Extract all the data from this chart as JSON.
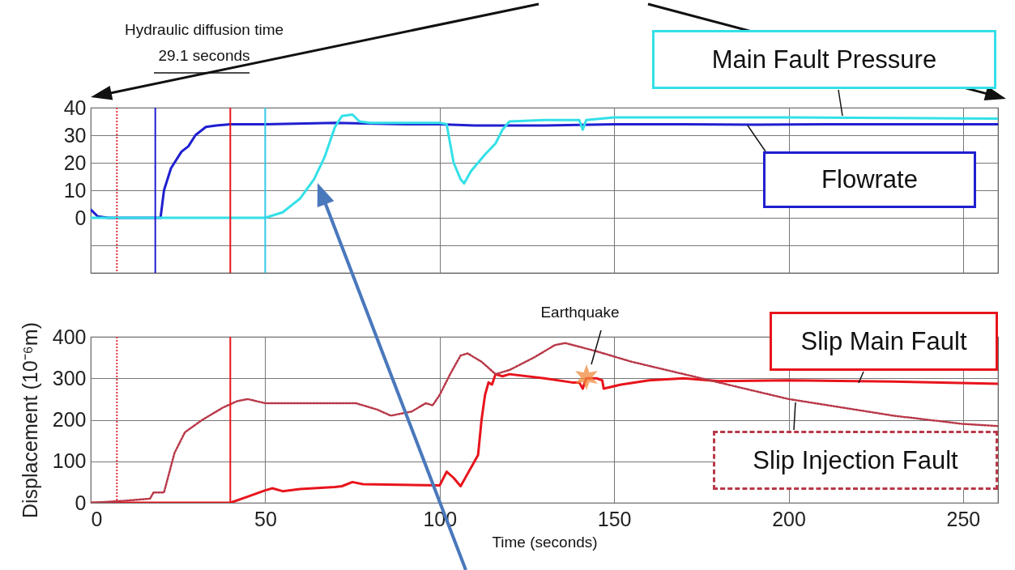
{
  "chart_data": [
    {
      "type": "line",
      "xlim": [
        0,
        260
      ],
      "xticks": [
        0,
        50,
        100,
        150,
        200,
        250
      ],
      "ylim": [
        -20,
        40
      ],
      "yticks": [
        {
          "value": -10,
          "label": null
        },
        0,
        10,
        20,
        30,
        40
      ],
      "grid": true,
      "tick_labels": "y",
      "series": [
        {
          "name": "Flowrate",
          "color": "#1f1fd0",
          "x": [
            0,
            2,
            5,
            15,
            19,
            20,
            21,
            23,
            26,
            28,
            30,
            33,
            36,
            40,
            50,
            70,
            90,
            100,
            110,
            130,
            150,
            170,
            190,
            210,
            230,
            260
          ],
          "values": [
            3,
            0.5,
            0,
            0,
            0,
            0,
            10,
            18,
            24,
            26,
            30,
            33,
            33.5,
            34,
            34,
            34.5,
            34,
            34,
            33.5,
            33.5,
            34,
            34,
            33.8,
            34,
            34,
            34
          ]
        },
        {
          "name": "Main Fault Pressure",
          "color": "#33e0e8",
          "x": [
            0,
            50,
            55,
            60,
            64,
            67,
            70,
            72,
            75,
            77,
            80,
            100,
            102,
            104,
            106,
            107,
            109,
            113,
            116,
            118,
            120,
            130,
            140,
            141,
            142,
            150,
            200,
            260
          ],
          "values": [
            0,
            0,
            2,
            7,
            14,
            22,
            33,
            37,
            37.5,
            35,
            34.5,
            34.5,
            34,
            20,
            14,
            12.5,
            17,
            23,
            27,
            32,
            35,
            35.5,
            35.5,
            32,
            35.5,
            36.5,
            36.5,
            36
          ]
        }
      ],
      "ref_lines": [
        {
          "axis": "x",
          "value": 7.5,
          "color": "#e0303c",
          "line_style": "dotted"
        },
        {
          "axis": "x",
          "value": 18.5,
          "color": "#1f1fd0",
          "line_style": "solid"
        },
        {
          "axis": "x",
          "value": 40,
          "color": "#e8141c",
          "line_style": "solid"
        },
        {
          "axis": "x",
          "value": 50,
          "color": "#33c8e8",
          "line_style": "solid"
        }
      ],
      "annotations": [
        "Hydraulic diffusion time\n29.1 seconds"
      ]
    },
    {
      "type": "line",
      "xlabel": "Time (seconds)",
      "ylabel": "Displacement (10⁻⁶m)",
      "xlim": [
        0,
        260
      ],
      "xticks": [
        0,
        50,
        100,
        150,
        200,
        250
      ],
      "ylim": [
        0,
        400
      ],
      "yticks": [
        0,
        100,
        200,
        300,
        400
      ],
      "grid": true,
      "series": [
        {
          "name": "Slip Main Fault",
          "color": "#e8141c",
          "line_style": "solid",
          "x": [
            0,
            40,
            45,
            50,
            52,
            55,
            60,
            70,
            72,
            75,
            78,
            100,
            102,
            104,
            106,
            108,
            110,
            111,
            112,
            113,
            114,
            115,
            116,
            118,
            120,
            130,
            138,
            140,
            141,
            142,
            145,
            146.6,
            147,
            152,
            160,
            170,
            180,
            200,
            230,
            260
          ],
          "values": [
            0,
            0,
            15,
            30,
            35,
            28,
            33,
            38,
            40,
            50,
            45,
            42,
            75,
            60,
            40,
            70,
            100,
            115,
            200,
            260,
            290,
            285,
            310,
            305,
            310,
            300,
            290,
            290,
            275,
            300,
            300,
            295,
            275,
            285,
            295,
            300,
            293,
            295,
            292,
            287
          ]
        },
        {
          "name": "Slip Injection Fault",
          "color": "#b83848",
          "line_style": "dotted",
          "x": [
            0,
            10,
            17,
            18,
            21,
            24,
            27,
            32,
            38,
            42,
            45,
            50,
            60,
            70,
            76,
            82,
            86,
            92,
            96,
            98,
            100,
            103,
            106,
            108,
            112,
            116,
            120,
            127,
            133,
            136,
            145,
            155,
            175,
            200,
            230,
            250,
            260
          ],
          "values": [
            0,
            5,
            10,
            25,
            25,
            120,
            170,
            200,
            230,
            245,
            250,
            240,
            240,
            240,
            240,
            225,
            210,
            220,
            240,
            235,
            260,
            310,
            355,
            360,
            340,
            310,
            320,
            350,
            380,
            385,
            365,
            340,
            300,
            250,
            210,
            190,
            185
          ]
        }
      ],
      "ref_lines": [
        {
          "axis": "x",
          "value": 7.5,
          "color": "#e0303c",
          "line_style": "dotted"
        },
        {
          "axis": "x",
          "value": 40,
          "color": "#e8141c",
          "line_style": "solid"
        }
      ],
      "annotations": [
        "Earthquake"
      ]
    }
  ]
}
